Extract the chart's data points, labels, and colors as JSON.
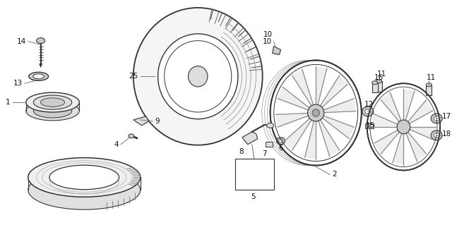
{
  "background_color": "#ffffff",
  "fig_width": 6.4,
  "fig_height": 3.19,
  "dpi": 100,
  "line_color": "#333333",
  "text_color": "#111111",
  "font_size": 7.5
}
